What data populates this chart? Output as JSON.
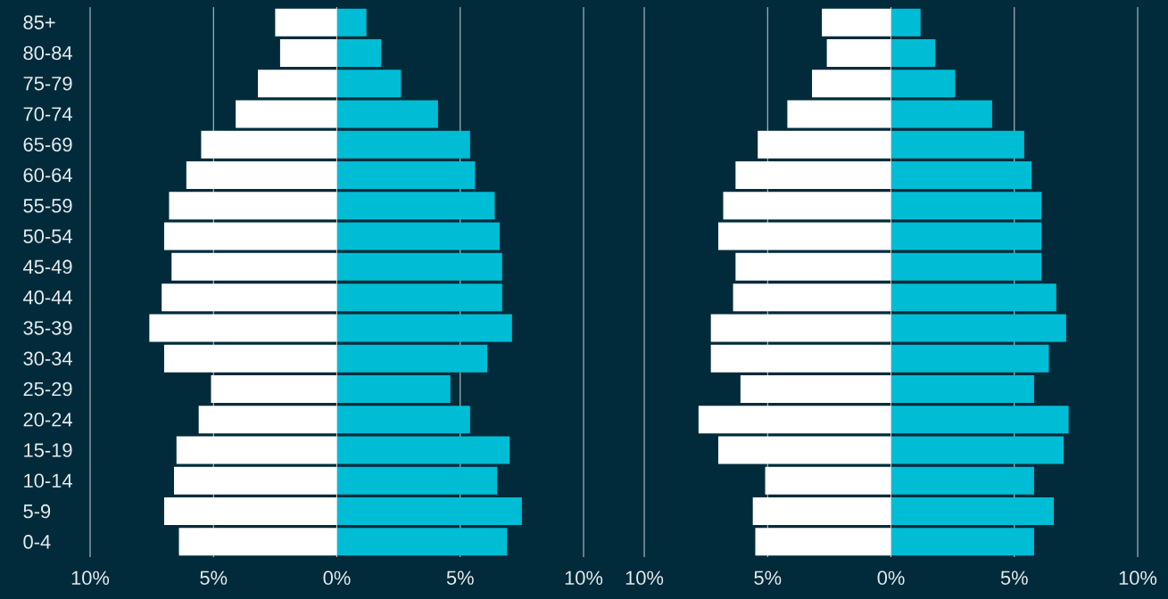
{
  "chart_data": [
    {
      "type": "bar",
      "orientation": "horizontal",
      "stacked": true,
      "categories": [
        "85+",
        "80-84",
        "75-79",
        "70-74",
        "65-69",
        "60-64",
        "55-59",
        "50-54",
        "45-49",
        "40-44",
        "35-39",
        "30-34",
        "25-29",
        "20-24",
        "15-19",
        "10-14",
        "5-9",
        "0-4"
      ],
      "series": [
        {
          "color": "#ffffff",
          "values": [
            -2.5,
            -2.3,
            -3.2,
            -4.1,
            -5.5,
            -6.1,
            -6.8,
            -7.0,
            -6.7,
            -7.1,
            -7.6,
            -7.0,
            -5.1,
            -5.6,
            -6.5,
            -6.6,
            -7.0,
            -6.4
          ]
        },
        {
          "color": "#00bdd6",
          "values": [
            1.2,
            1.8,
            2.6,
            4.1,
            5.4,
            5.6,
            6.4,
            6.6,
            6.7,
            6.7,
            7.1,
            6.1,
            4.6,
            5.4,
            7.0,
            6.5,
            7.5,
            6.9
          ]
        }
      ],
      "xlim": [
        -10,
        10
      ],
      "xticks": [
        {
          "value": -10,
          "label": "10%"
        },
        {
          "value": -5,
          "label": "5%"
        },
        {
          "value": 0,
          "label": "0%"
        },
        {
          "value": 5,
          "label": "5%"
        },
        {
          "value": 10,
          "label": "10%"
        }
      ],
      "grid": "x"
    },
    {
      "type": "bar",
      "orientation": "horizontal",
      "stacked": true,
      "categories": [
        null,
        null,
        null,
        null,
        null,
        null,
        null,
        null,
        null,
        null,
        null,
        null,
        null,
        null,
        null,
        null,
        null,
        null
      ],
      "series": [
        {
          "color": "#ffffff",
          "values": [
            -2.8,
            -2.6,
            -3.2,
            -4.2,
            -5.4,
            -6.3,
            -6.8,
            -7.0,
            -6.3,
            -6.4,
            -7.3,
            -7.3,
            -6.1,
            -7.8,
            -7.0,
            -5.1,
            -5.6,
            -5.5
          ]
        },
        {
          "color": "#00bdd6",
          "values": [
            1.2,
            1.8,
            2.6,
            4.1,
            5.4,
            5.7,
            6.1,
            6.1,
            6.1,
            6.7,
            7.1,
            6.4,
            5.8,
            7.2,
            7.0,
            5.8,
            6.6,
            5.8
          ]
        }
      ],
      "xlim": [
        -10,
        10
      ],
      "xticks": [
        {
          "value": -10,
          "label": "10%"
        },
        {
          "value": -5,
          "label": "5%"
        },
        {
          "value": 0,
          "label": "0%"
        },
        {
          "value": 5,
          "label": "5%"
        },
        {
          "value": 10,
          "label": "10%"
        }
      ],
      "grid": "x",
      "tick_labels": "x"
    }
  ]
}
